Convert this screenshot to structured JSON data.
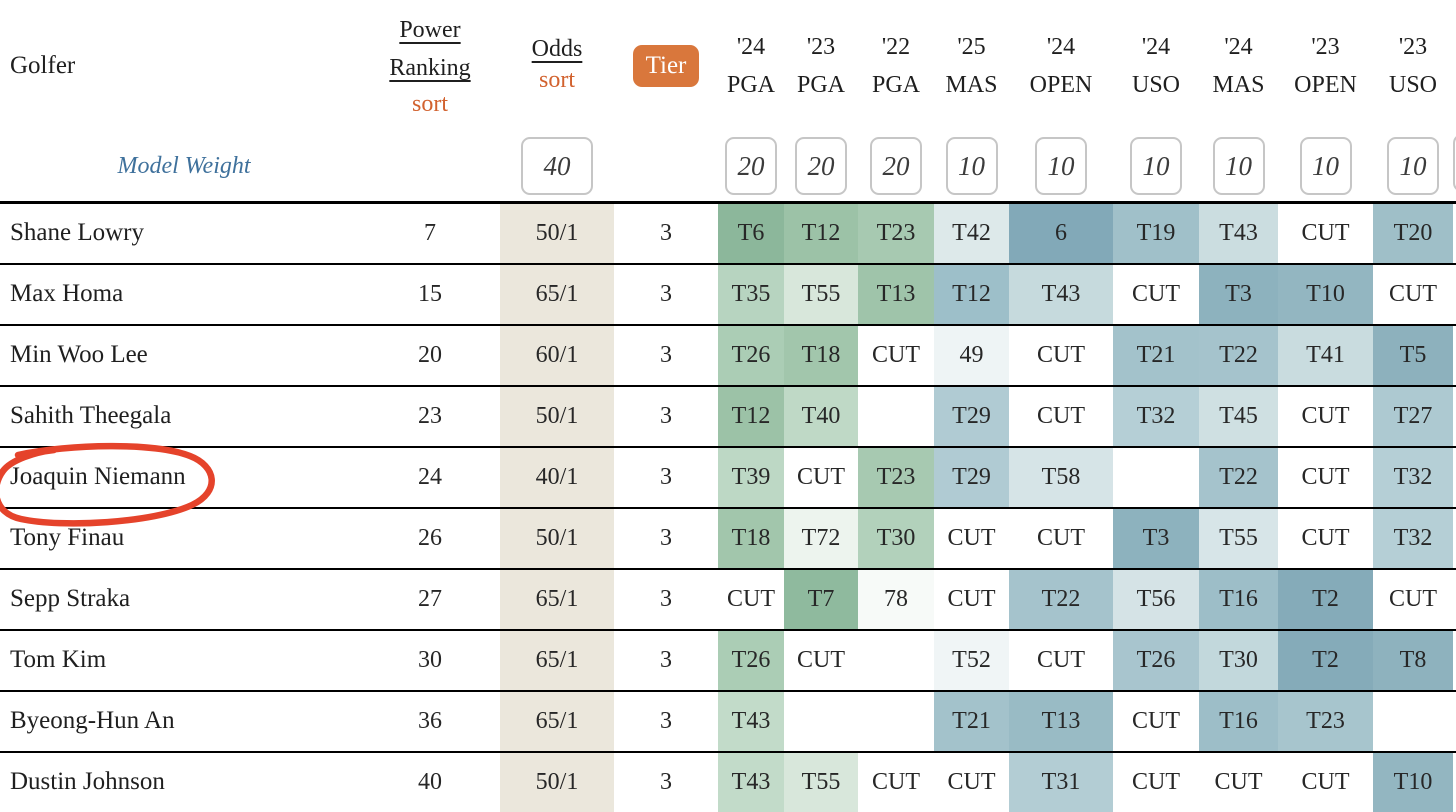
{
  "header": {
    "golfer": "Golfer",
    "power_ranking": "Power Ranking",
    "odds": "Odds",
    "sort": "sort",
    "tier": "Tier",
    "events": [
      {
        "year": "'24",
        "name": "PGA"
      },
      {
        "year": "'23",
        "name": "PGA"
      },
      {
        "year": "'22",
        "name": "PGA"
      },
      {
        "year": "'25",
        "name": "MAS"
      },
      {
        "year": "'24",
        "name": "OPEN"
      },
      {
        "year": "'24",
        "name": "USO"
      },
      {
        "year": "'24",
        "name": "MAS"
      },
      {
        "year": "'23",
        "name": "OPEN"
      },
      {
        "year": "'23",
        "name": "USO"
      }
    ]
  },
  "model_weight": {
    "label": "Model Weight",
    "odds_weight": "40",
    "event_weights": [
      "20",
      "20",
      "20",
      "10",
      "10",
      "10",
      "10",
      "10",
      "10"
    ]
  },
  "rows": [
    {
      "golfer": "Shane Lowry",
      "power_ranking": "7",
      "odds": "50/1",
      "tier": "3",
      "results": [
        {
          "v": "T6",
          "c": "#8cb79b"
        },
        {
          "v": "T12",
          "c": "#9cc2a7"
        },
        {
          "v": "T23",
          "c": "#a7c9b1"
        },
        {
          "v": "T42",
          "c": "#dde9ea"
        },
        {
          "v": "6",
          "c": "#82a9b8"
        },
        {
          "v": "T19",
          "c": "#a0c0c9"
        },
        {
          "v": "T43",
          "c": "#cbdde0"
        },
        {
          "v": "CUT",
          "c": "#ffffff"
        },
        {
          "v": "T20",
          "c": "#9fbfc8"
        }
      ]
    },
    {
      "golfer": "Max Homa",
      "power_ranking": "15",
      "odds": "65/1",
      "tier": "3",
      "results": [
        {
          "v": "T35",
          "c": "#b7d4c0"
        },
        {
          "v": "T55",
          "c": "#d8e7db"
        },
        {
          "v": "T13",
          "c": "#9fc4aa"
        },
        {
          "v": "T12",
          "c": "#9dbfc9"
        },
        {
          "v": "T43",
          "c": "#c6dadd"
        },
        {
          "v": "CUT",
          "c": "#ffffff"
        },
        {
          "v": "T3",
          "c": "#8db2be"
        },
        {
          "v": "T10",
          "c": "#93b6c1"
        },
        {
          "v": "CUT",
          "c": "#ffffff"
        }
      ]
    },
    {
      "golfer": "Min Woo Lee",
      "power_ranking": "20",
      "odds": "60/1",
      "tier": "3",
      "results": [
        {
          "v": "T26",
          "c": "#abcdb5"
        },
        {
          "v": "T18",
          "c": "#a2c6ac"
        },
        {
          "v": "CUT",
          "c": "#ffffff"
        },
        {
          "v": "49",
          "c": "#eef4f5"
        },
        {
          "v": "CUT",
          "c": "#ffffff"
        },
        {
          "v": "T21",
          "c": "#a3c2cb"
        },
        {
          "v": "T22",
          "c": "#a5c3cc"
        },
        {
          "v": "T41",
          "c": "#c9dcdf"
        },
        {
          "v": "T5",
          "c": "#8db1bd"
        }
      ]
    },
    {
      "golfer": "Sahith Theegala",
      "power_ranking": "23",
      "odds": "50/1",
      "tier": "3",
      "results": [
        {
          "v": "T12",
          "c": "#9cc2a7"
        },
        {
          "v": "T40",
          "c": "#bfd9c6"
        },
        {
          "v": "",
          "c": "#ffffff"
        },
        {
          "v": "T29",
          "c": "#b0cbd3"
        },
        {
          "v": "CUT",
          "c": "#ffffff"
        },
        {
          "v": "T32",
          "c": "#b5cfd6"
        },
        {
          "v": "T45",
          "c": "#cfe0e2"
        },
        {
          "v": "CUT",
          "c": "#ffffff"
        },
        {
          "v": "T27",
          "c": "#adc9d1"
        }
      ]
    },
    {
      "golfer": "Joaquin Niemann",
      "power_ranking": "24",
      "odds": "40/1",
      "tier": "3",
      "results": [
        {
          "v": "T39",
          "c": "#bdd8c5"
        },
        {
          "v": "CUT",
          "c": "#ffffff"
        },
        {
          "v": "T23",
          "c": "#a7c9b1"
        },
        {
          "v": "T29",
          "c": "#b0cbd3"
        },
        {
          "v": "T58",
          "c": "#d6e4e7"
        },
        {
          "v": "",
          "c": "#ffffff"
        },
        {
          "v": "T22",
          "c": "#a5c3cc"
        },
        {
          "v": "CUT",
          "c": "#ffffff"
        },
        {
          "v": "T32",
          "c": "#b5cfd6"
        }
      ]
    },
    {
      "golfer": "Tony Finau",
      "power_ranking": "26",
      "odds": "50/1",
      "tier": "3",
      "results": [
        {
          "v": "T18",
          "c": "#a2c6ac"
        },
        {
          "v": "T72",
          "c": "#edf4ee"
        },
        {
          "v": "T30",
          "c": "#b2d1bb"
        },
        {
          "v": "CUT",
          "c": "#ffffff"
        },
        {
          "v": "CUT",
          "c": "#ffffff"
        },
        {
          "v": "T3",
          "c": "#8db2be"
        },
        {
          "v": "T55",
          "c": "#d7e5e8"
        },
        {
          "v": "CUT",
          "c": "#ffffff"
        },
        {
          "v": "T32",
          "c": "#b5cfd6"
        }
      ]
    },
    {
      "golfer": "Sepp Straka",
      "power_ranking": "27",
      "odds": "65/1",
      "tier": "3",
      "results": [
        {
          "v": "CUT",
          "c": "#ffffff"
        },
        {
          "v": "T7",
          "c": "#8fba9e"
        },
        {
          "v": "78",
          "c": "#f7faf8"
        },
        {
          "v": "CUT",
          "c": "#ffffff"
        },
        {
          "v": "T22",
          "c": "#a5c3cc"
        },
        {
          "v": "T56",
          "c": "#d5e3e6"
        },
        {
          "v": "T16",
          "c": "#9dbec8"
        },
        {
          "v": "T2",
          "c": "#85abb9"
        },
        {
          "v": "CUT",
          "c": "#ffffff"
        }
      ]
    },
    {
      "golfer": "Tom Kim",
      "power_ranking": "30",
      "odds": "65/1",
      "tier": "3",
      "results": [
        {
          "v": "T26",
          "c": "#abcdb5"
        },
        {
          "v": "CUT",
          "c": "#ffffff"
        },
        {
          "v": "",
          "c": "#ffffff"
        },
        {
          "v": "T52",
          "c": "#f0f5f6"
        },
        {
          "v": "CUT",
          "c": "#ffffff"
        },
        {
          "v": "T26",
          "c": "#a8c5ce"
        },
        {
          "v": "T30",
          "c": "#c2d8dc"
        },
        {
          "v": "T2",
          "c": "#85abb9"
        },
        {
          "v": "T8",
          "c": "#8eb2be"
        }
      ]
    },
    {
      "golfer": "Byeong-Hun An",
      "power_ranking": "36",
      "odds": "65/1",
      "tier": "3",
      "results": [
        {
          "v": "T43",
          "c": "#c2dbc9"
        },
        {
          "v": "",
          "c": "#ffffff"
        },
        {
          "v": "",
          "c": "#ffffff"
        },
        {
          "v": "T21",
          "c": "#a3c2cb"
        },
        {
          "v": "T13",
          "c": "#99bbc5"
        },
        {
          "v": "CUT",
          "c": "#ffffff"
        },
        {
          "v": "T16",
          "c": "#9dbec8"
        },
        {
          "v": "T23",
          "c": "#a7c5cd"
        },
        {
          "v": "",
          "c": "#ffffff"
        }
      ]
    },
    {
      "golfer": "Dustin Johnson",
      "power_ranking": "40",
      "odds": "50/1",
      "tier": "3",
      "results": [
        {
          "v": "T43",
          "c": "#c2dbc9"
        },
        {
          "v": "T55",
          "c": "#d8e7db"
        },
        {
          "v": "CUT",
          "c": "#ffffff"
        },
        {
          "v": "CUT",
          "c": "#ffffff"
        },
        {
          "v": "T31",
          "c": "#b3cdd4"
        },
        {
          "v": "CUT",
          "c": "#ffffff"
        },
        {
          "v": "CUT",
          "c": "#ffffff"
        },
        {
          "v": "CUT",
          "c": "#ffffff"
        },
        {
          "v": "T10",
          "c": "#93b6c1"
        }
      ]
    }
  ],
  "annotation": {
    "shape": "hand-drawn circle",
    "around": "Joaquin Niemann",
    "color": "#e5432b"
  },
  "colors": {
    "odds_column_bg": "#ebe7dc",
    "tier_button_bg": "#d9773c",
    "sort_link": "#d2622f",
    "model_weight_text": "#3f719c",
    "row_border": "#000000"
  }
}
